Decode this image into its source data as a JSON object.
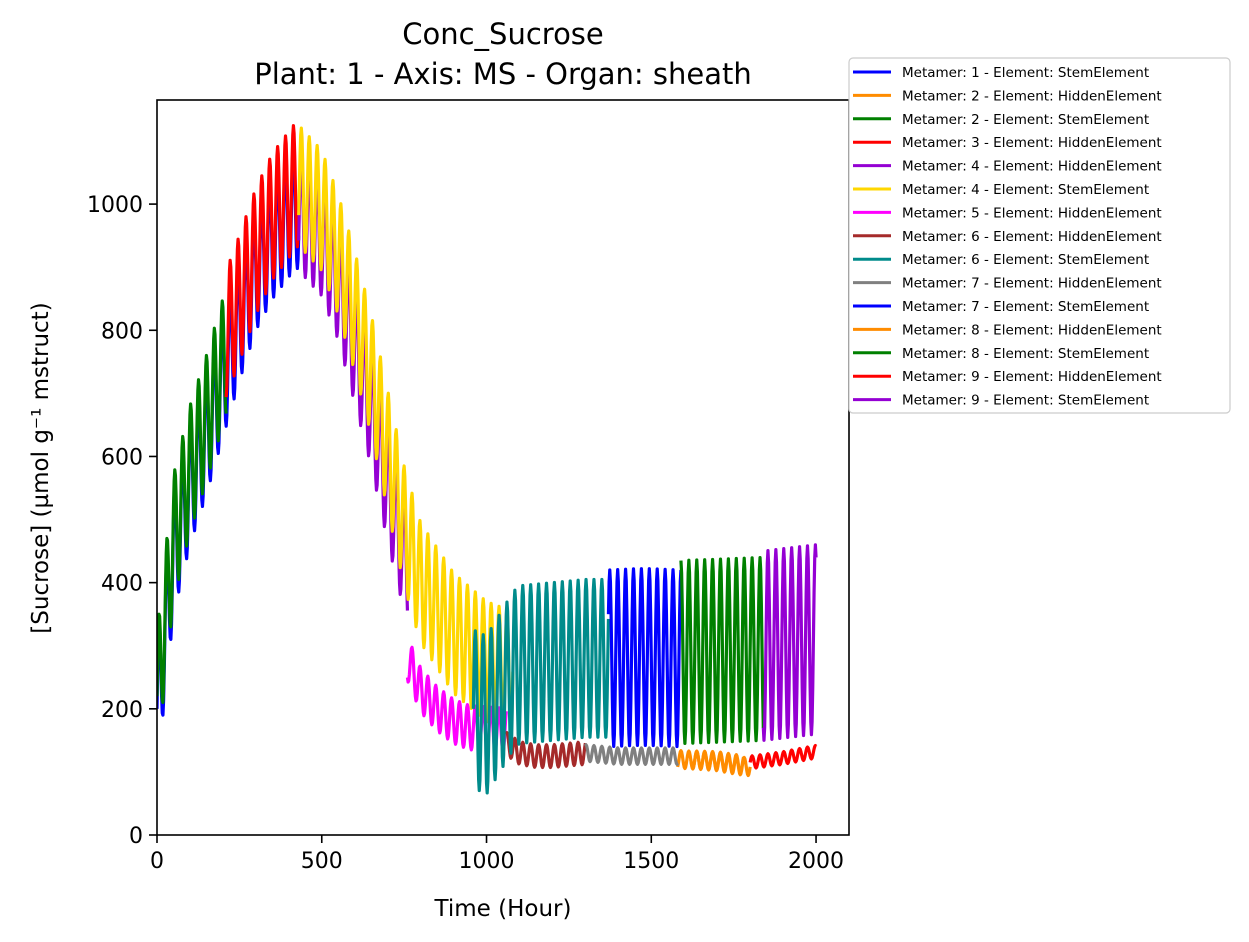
{
  "chart_data": {
    "type": "line",
    "title": "Conc_Sucrose",
    "subtitle": "Plant: 1 - Axis: MS - Organ: sheath",
    "xlabel": "Time (Hour)",
    "ylabel": "[Sucrose] (µmol g⁻¹ mstruct)",
    "xlim": [
      0,
      2100
    ],
    "ylim": [
      0,
      1165
    ],
    "xticks": [
      0,
      500,
      1000,
      1500,
      2000
    ],
    "yticks": [
      0,
      200,
      400,
      600,
      800,
      1000
    ],
    "legend_position": "outside-top-right",
    "oscillation_period_hours": 24,
    "series": [
      {
        "name": "Metamer: 1 - Element: StemElement",
        "color": "#0000ff",
        "points": [
          [
            0,
            200
          ],
          [
            50,
            450
          ],
          [
            100,
            560
          ],
          [
            150,
            640
          ],
          [
            200,
            730
          ],
          [
            250,
            820
          ],
          [
            300,
            900
          ],
          [
            350,
            950
          ],
          [
            400,
            985
          ],
          [
            430,
            1000
          ]
        ],
        "amplitude": 100,
        "draw_from": 0,
        "draw_to": 430
      },
      {
        "name": "Metamer: 2 - Element: HiddenElement",
        "color": "#ff8c00",
        "points": [
          [
            1580,
            120
          ],
          [
            1650,
            118
          ],
          [
            1700,
            116
          ],
          [
            1760,
            110
          ],
          [
            1800,
            108
          ]
        ],
        "amplitude": 14,
        "draw_from": 1580,
        "draw_to": 1800
      },
      {
        "name": "Metamer: 2 - Element: StemElement",
        "color": "#008000",
        "points": [
          [
            0,
            220
          ],
          [
            50,
            470
          ],
          [
            100,
            580
          ],
          [
            150,
            660
          ],
          [
            200,
            750
          ],
          [
            250,
            840
          ],
          [
            300,
            920
          ],
          [
            350,
            970
          ],
          [
            400,
            1010
          ],
          [
            430,
            1030
          ]
        ],
        "amplitude": 100,
        "draw_from": 0,
        "draw_to": 210
      },
      {
        "name": "Metamer: 3 - Element: HiddenElement",
        "color": "#ff0000",
        "points": [
          [
            200,
            780
          ],
          [
            250,
            850
          ],
          [
            300,
            925
          ],
          [
            350,
            980
          ],
          [
            400,
            1015
          ],
          [
            430,
            1035
          ]
        ],
        "amplitude": 100,
        "draw_from": 210,
        "draw_to": 430
      },
      {
        "name": "Metamer: 4 - Element: HiddenElement",
        "color": "#9400d3",
        "points": [
          [
            430,
            990
          ],
          [
            500,
            950
          ],
          [
            550,
            880
          ],
          [
            600,
            780
          ],
          [
            650,
            680
          ],
          [
            700,
            560
          ],
          [
            750,
            450
          ],
          [
            800,
            390
          ],
          [
            850,
            360
          ]
        ],
        "amplitude": 95,
        "draw_from": 430,
        "draw_to": 760
      },
      {
        "name": "Metamer: 4 - Element: StemElement",
        "color": "#ffd700",
        "points": [
          [
            430,
            1030
          ],
          [
            500,
            990
          ],
          [
            550,
            920
          ],
          [
            600,
            830
          ],
          [
            650,
            730
          ],
          [
            700,
            610
          ],
          [
            750,
            490
          ],
          [
            800,
            400
          ],
          [
            900,
            320
          ],
          [
            1000,
            275
          ],
          [
            1100,
            255
          ],
          [
            1200,
            240
          ],
          [
            1300,
            232
          ],
          [
            1400,
            230
          ]
        ],
        "amplitude": 95,
        "draw_from": 430,
        "draw_to": 1080
      },
      {
        "name": "Metamer: 5 - Element: HiddenElement",
        "color": "#ff00ff",
        "points": [
          [
            760,
            280
          ],
          [
            800,
            230
          ],
          [
            850,
            200
          ],
          [
            900,
            180
          ],
          [
            950,
            170
          ],
          [
            1000,
            168
          ],
          [
            1080,
            165
          ]
        ],
        "amplitude": 35,
        "draw_from": 760,
        "draw_to": 1060
      },
      {
        "name": "Metamer: 6 - Element: HiddenElement",
        "color": "#a52a2a",
        "points": [
          [
            1060,
            145
          ],
          [
            1100,
            130
          ],
          [
            1150,
            125
          ],
          [
            1200,
            125
          ],
          [
            1260,
            128
          ],
          [
            1300,
            130
          ]
        ],
        "amplitude": 18,
        "draw_from": 1060,
        "draw_to": 1300
      },
      {
        "name": "Metamer: 6 - Element: StemElement",
        "color": "#008b8b",
        "points": [
          [
            960,
            200
          ],
          [
            1000,
            190
          ],
          [
            1080,
            260
          ],
          [
            1100,
            270
          ],
          [
            1200,
            275
          ],
          [
            1300,
            280
          ],
          [
            1370,
            280
          ]
        ],
        "amplitude": 125,
        "draw_from": 960,
        "draw_to": 1370
      },
      {
        "name": "Metamer: 7 - Element: HiddenElement",
        "color": "#808080",
        "points": [
          [
            1300,
            130
          ],
          [
            1400,
            125
          ],
          [
            1500,
            125
          ],
          [
            1580,
            125
          ]
        ],
        "amplitude": 13,
        "draw_from": 1300,
        "draw_to": 1580
      },
      {
        "name": "Metamer: 7 - Element: StemElement",
        "color": "#0000ff",
        "points": [
          [
            1370,
            280
          ],
          [
            1450,
            282
          ],
          [
            1500,
            282
          ],
          [
            1590,
            280
          ]
        ],
        "amplitude": 140,
        "draw_from": 1370,
        "draw_to": 1590
      },
      {
        "name": "Metamer: 8 - Element: HiddenElement",
        "color": "#ff8c00",
        "points": [
          [
            1580,
            120
          ],
          [
            1700,
            118
          ],
          [
            1800,
            110
          ]
        ],
        "amplitude": 14,
        "draw_from": 1620,
        "draw_to": 1780
      },
      {
        "name": "Metamer: 8 - Element: StemElement",
        "color": "#008000",
        "points": [
          [
            1590,
            290
          ],
          [
            1700,
            292
          ],
          [
            1840,
            295
          ]
        ],
        "amplitude": 145,
        "draw_from": 1590,
        "draw_to": 1840
      },
      {
        "name": "Metamer: 9 - Element: HiddenElement",
        "color": "#ff0000",
        "points": [
          [
            1800,
            115
          ],
          [
            1900,
            122
          ],
          [
            2000,
            132
          ]
        ],
        "amplitude": 10,
        "draw_from": 1800,
        "draw_to": 2000
      },
      {
        "name": "Metamer: 9 - Element: StemElement",
        "color": "#9400d3",
        "points": [
          [
            1840,
            300
          ],
          [
            1920,
            305
          ],
          [
            2000,
            310
          ]
        ],
        "amplitude": 150,
        "draw_from": 1840,
        "draw_to": 2000
      }
    ]
  }
}
